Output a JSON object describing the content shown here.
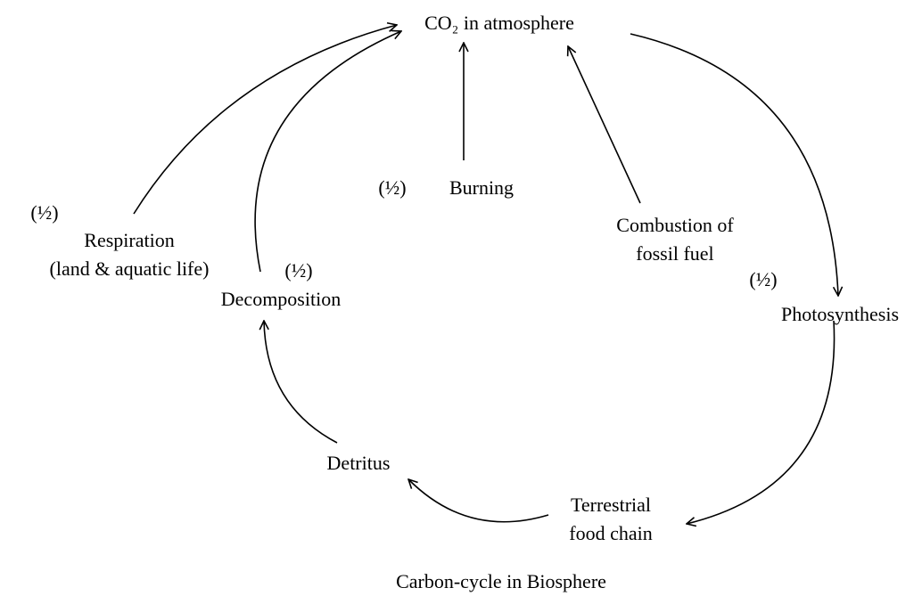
{
  "title": "Carbon-cycle in Biosphere",
  "nodes": [
    {
      "id": "co2",
      "lines": [
        "CO₂ in atmosphere"
      ]
    },
    {
      "id": "burning",
      "lines": [
        "Burning"
      ],
      "mark": "(½)"
    },
    {
      "id": "combustion",
      "lines": [
        "Combustion of",
        "fossil fuel"
      ]
    },
    {
      "id": "photosynthesis",
      "lines": [
        "Photosynthesis"
      ],
      "mark": "(½)"
    },
    {
      "id": "respiration",
      "lines": [
        "Respiration",
        "(land & aquatic life)"
      ],
      "mark": "(½)"
    },
    {
      "id": "decomposition",
      "lines": [
        "Decomposition"
      ],
      "mark": "(½)"
    },
    {
      "id": "detritus",
      "lines": [
        "Detritus"
      ]
    },
    {
      "id": "terrestrial",
      "lines": [
        "Terrestrial",
        "food chain"
      ]
    }
  ]
}
